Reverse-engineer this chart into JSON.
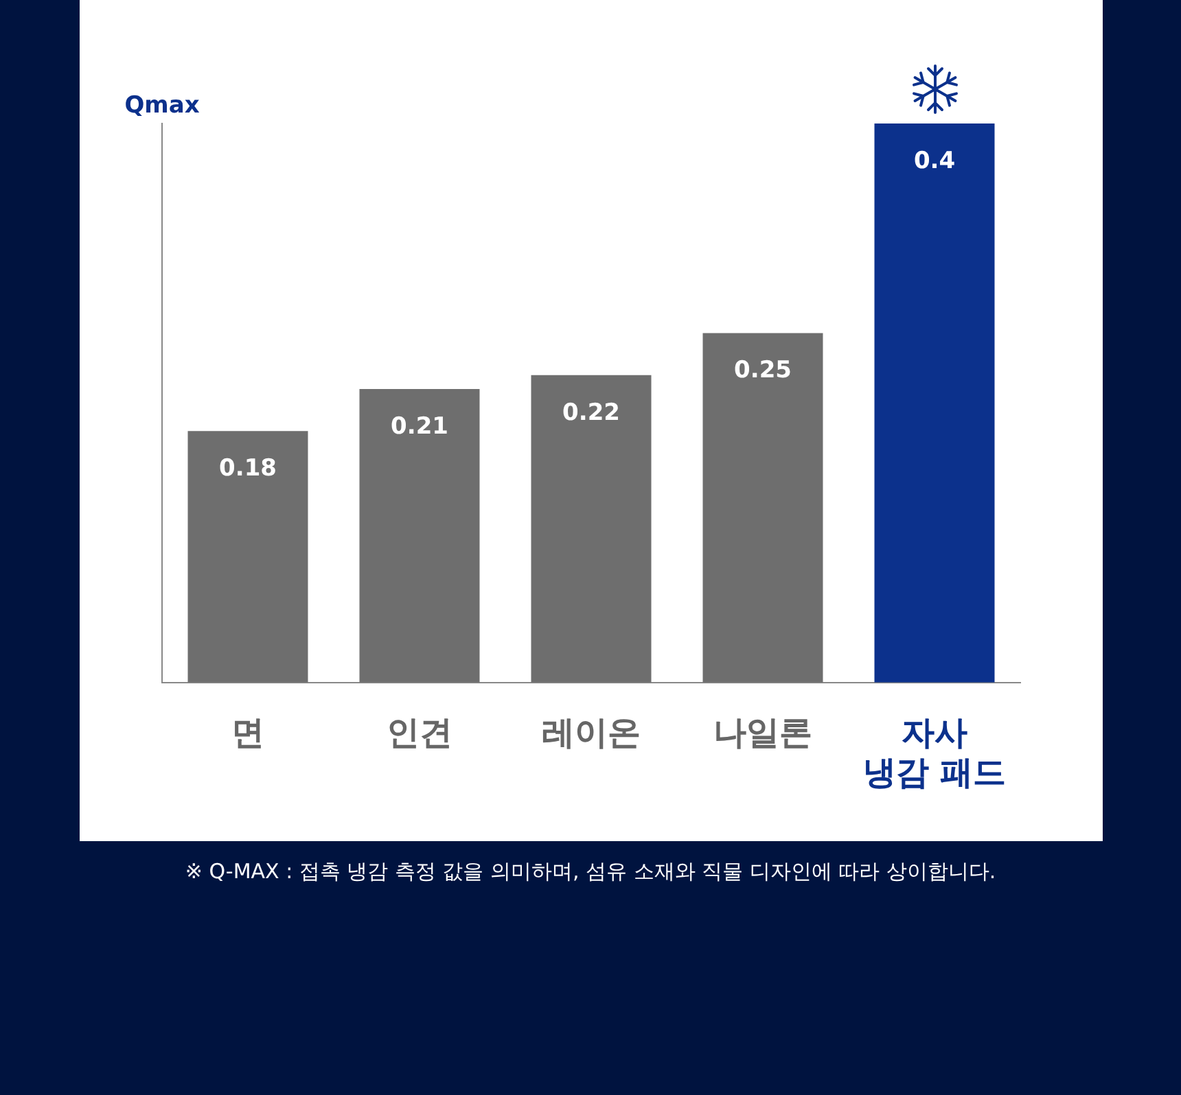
{
  "chart_data": {
    "type": "bar",
    "ylabel": "Qmax",
    "categories": [
      "면",
      "인견",
      "레이온",
      "나일론",
      "자사 냉감 패드"
    ],
    "values": [
      0.18,
      0.21,
      0.22,
      0.25,
      0.4
    ],
    "colors": [
      "#6e6e6e",
      "#6e6e6e",
      "#6e6e6e",
      "#6e6e6e",
      "#0c318c"
    ],
    "data_labels": true,
    "grid": false,
    "legend": false,
    "annotations": [
      "※ Q-MAX : 접촉 냉감 측정 값을 의미하며, 섬유 소재와 직물 디자인에 따라 상이합니다."
    ]
  }
}
